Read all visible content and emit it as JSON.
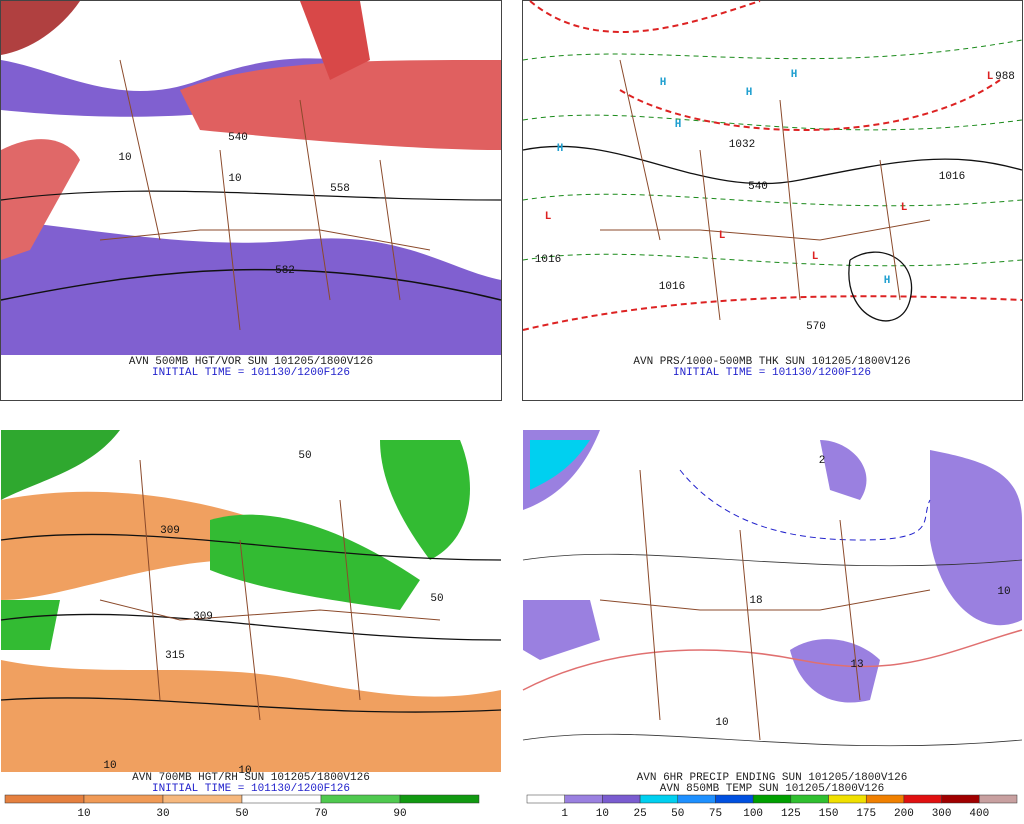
{
  "panels": [
    {
      "caption": [
        "AVN 500MB HGT/VOR SUN 101205/1800V126",
        "INITIAL TIME = 101130/1200F126"
      ],
      "labels": [
        "582",
        "558",
        "540",
        "10",
        "10"
      ]
    },
    {
      "caption": [
        "AVN PRS/1000-500MB THK SUN 101205/1800V126",
        "INITIAL TIME = 101130/1200F126"
      ],
      "labels": [
        "H",
        "H",
        "H",
        "H",
        "H",
        "H",
        "L",
        "L",
        "L",
        "L",
        "L",
        "1016",
        "1016",
        "1016",
        "570",
        "540",
        "1032",
        "988"
      ]
    },
    {
      "caption": [
        "AVN 700MB HGT/RH SUN 101205/1800V126",
        "INITIAL TIME = 101130/1200F126"
      ],
      "labels": [
        "309",
        "309",
        "315",
        "10",
        "50",
        "50",
        "10"
      ],
      "legend": {
        "labels": [
          "10",
          "30",
          "50",
          "70",
          "90"
        ],
        "colors": [
          "#e5803f",
          "#f09a56",
          "#f6b87e",
          "#ffffff",
          "#4fc94f",
          "#119911"
        ]
      }
    },
    {
      "caption": [
        "AVN 6HR PRECIP ENDING SUN 101205/1800V126",
        "AVN 850MB TEMP SUN 101205/1800V126"
      ],
      "labels": [
        "10",
        "10",
        "13",
        "18",
        "2"
      ],
      "legend": {
        "labels": [
          "1",
          "10",
          "25",
          "50",
          "75",
          "100",
          "125",
          "150",
          "175",
          "200",
          "300",
          "400"
        ],
        "colors": [
          "#ffffff",
          "#9a80e0",
          "#7a5cd0",
          "#00d0f0",
          "#1e90ff",
          "#0050e0",
          "#00a000",
          "#30c030",
          "#f0e000",
          "#f08000",
          "#e01010",
          "#a00000",
          "#c8a0a0"
        ]
      }
    }
  ]
}
